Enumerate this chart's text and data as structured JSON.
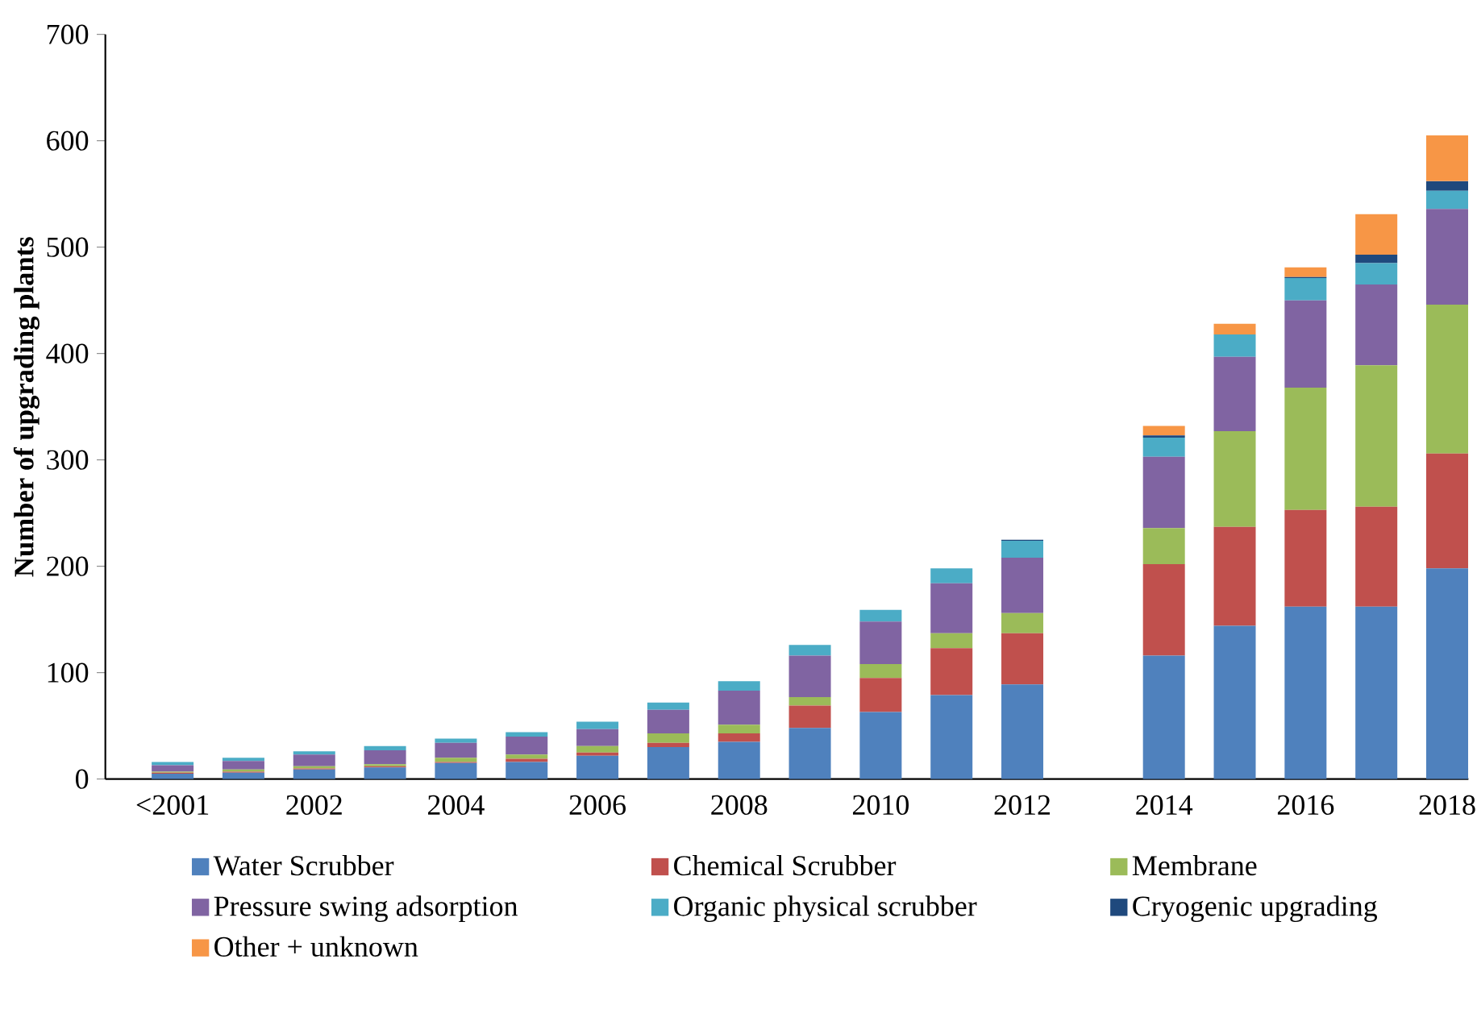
{
  "chart_data": {
    "type": "bar",
    "stacked": true,
    "ylabel": "Number of upgrading plants",
    "categories": [
      "<2001",
      null,
      "2002",
      null,
      "2004",
      null,
      "2006",
      null,
      "2008",
      null,
      "2010",
      null,
      "2012",
      null,
      "2014",
      null,
      "2016",
      null,
      "2018"
    ],
    "ylim": [
      0,
      700
    ],
    "yticks": [
      0,
      100,
      200,
      300,
      400,
      500,
      600,
      700
    ],
    "legend": "bottom",
    "grid": false,
    "series": [
      {
        "name": "Water Scrubber",
        "color": "#4f81bd",
        "values": [
          5,
          6,
          9,
          11,
          15,
          16,
          22,
          30,
          35,
          48,
          63,
          79,
          89,
          null,
          116,
          144,
          162,
          162,
          198
        ]
      },
      {
        "name": "Chemical Scrubber",
        "color": "#c0504d",
        "values": [
          1,
          1,
          1,
          1,
          1,
          3,
          3,
          4,
          8,
          21,
          32,
          44,
          48,
          null,
          86,
          93,
          91,
          94,
          108
        ]
      },
      {
        "name": "Membrane",
        "color": "#9bbb59",
        "values": [
          1,
          2,
          2,
          2,
          4,
          4,
          6,
          9,
          8,
          8,
          13,
          14,
          19,
          null,
          34,
          90,
          115,
          133,
          140
        ]
      },
      {
        "name": "Pressure swing adsorption",
        "color": "#8064a2",
        "values": [
          6,
          8,
          11,
          13,
          14,
          17,
          16,
          22,
          32,
          39,
          40,
          47,
          52,
          null,
          67,
          70,
          82,
          76,
          90
        ]
      },
      {
        "name": "Organic physical scrubber",
        "color": "#4bacc6",
        "values": [
          3,
          3,
          3,
          4,
          4,
          4,
          7,
          7,
          9,
          10,
          11,
          14,
          16,
          null,
          18,
          21,
          21,
          20,
          17
        ]
      },
      {
        "name": "Cryogenic upgrading",
        "color": "#1f497d",
        "values": [
          0,
          0,
          0,
          0,
          0,
          0,
          0,
          0,
          0,
          0,
          0,
          0,
          1,
          null,
          2,
          0,
          1,
          8,
          9
        ]
      },
      {
        "name": "Other + unknown",
        "color": "#f79646",
        "values": [
          0,
          0,
          0,
          0,
          0,
          0,
          0,
          0,
          0,
          0,
          0,
          0,
          0,
          null,
          9,
          10,
          9,
          38,
          43
        ]
      }
    ]
  }
}
